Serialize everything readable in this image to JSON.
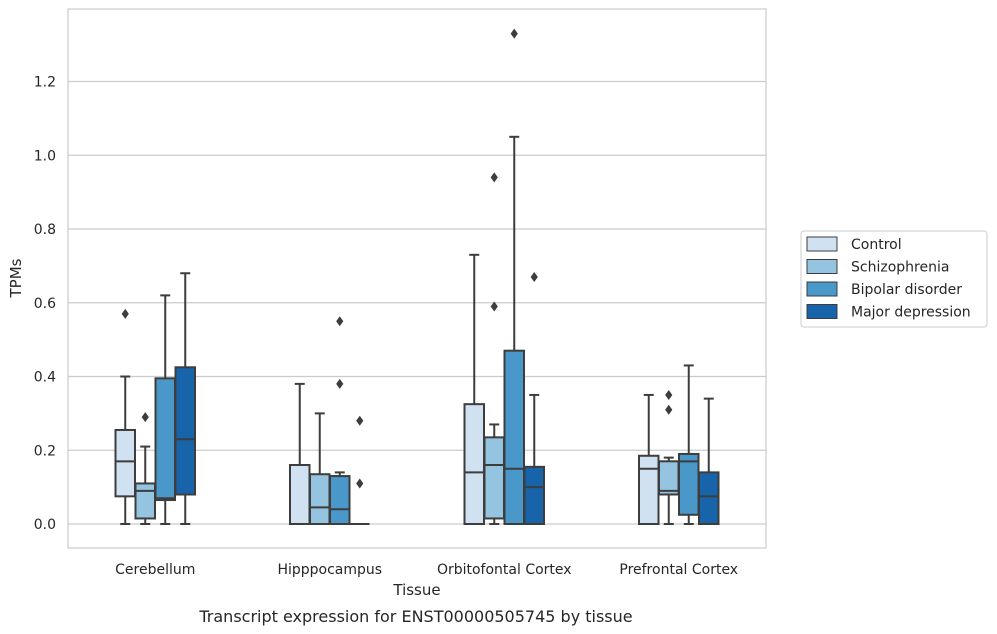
{
  "chart_data": {
    "type": "box",
    "caption": "Transcript expression for ENST00000505745 by tissue",
    "xlabel": "Tissue",
    "ylabel": "TPMs",
    "ylim": [
      -0.065,
      1.4
    ],
    "yticks": [
      0.0,
      0.2,
      0.4,
      0.6,
      0.8,
      1.0,
      1.2
    ],
    "ytick_labels": [
      "0.0",
      "0.2",
      "0.4",
      "0.6",
      "0.8",
      "1.0",
      "1.2"
    ],
    "grid": "horizontal",
    "legend_placement": "right",
    "categories": [
      "Cerebellum",
      "Hipppocampus",
      "Orbitofontal Cortex",
      "Prefrontal Cortex"
    ],
    "series": [
      {
        "name": "Control",
        "color": "#d0e1f2",
        "boxes": [
          {
            "whislo": 0.0,
            "q1": 0.075,
            "med": 0.17,
            "q3": 0.255,
            "whishi": 0.4,
            "fliers": [
              0.57
            ]
          },
          {
            "whislo": 0.0,
            "q1": 0.0,
            "med": 0.0,
            "q3": 0.16,
            "whishi": 0.38,
            "fliers": []
          },
          {
            "whislo": 0.0,
            "q1": 0.0,
            "med": 0.14,
            "q3": 0.325,
            "whishi": 0.73,
            "fliers": []
          },
          {
            "whislo": 0.0,
            "q1": 0.0,
            "med": 0.15,
            "q3": 0.185,
            "whishi": 0.35,
            "fliers": []
          }
        ]
      },
      {
        "name": "Schizophrenia",
        "color": "#94c4df",
        "boxes": [
          {
            "whislo": 0.0,
            "q1": 0.015,
            "med": 0.09,
            "q3": 0.11,
            "whishi": 0.21,
            "fliers": [
              0.29
            ]
          },
          {
            "whislo": 0.0,
            "q1": 0.0,
            "med": 0.045,
            "q3": 0.135,
            "whishi": 0.3,
            "fliers": []
          },
          {
            "whislo": 0.0,
            "q1": 0.015,
            "med": 0.16,
            "q3": 0.235,
            "whishi": 0.27,
            "fliers": [
              0.59,
              0.94
            ]
          },
          {
            "whislo": 0.0,
            "q1": 0.08,
            "med": 0.09,
            "q3": 0.17,
            "whishi": 0.18,
            "fliers": [
              0.31,
              0.35
            ]
          }
        ]
      },
      {
        "name": "Bipolar disorder",
        "color": "#4a98c9",
        "boxes": [
          {
            "whislo": 0.0,
            "q1": 0.065,
            "med": 0.07,
            "q3": 0.395,
            "whishi": 0.62,
            "fliers": []
          },
          {
            "whislo": 0.0,
            "q1": 0.0,
            "med": 0.04,
            "q3": 0.13,
            "whishi": 0.14,
            "fliers": [
              0.38,
              0.55
            ]
          },
          {
            "whislo": 0.0,
            "q1": 0.0,
            "med": 0.15,
            "q3": 0.47,
            "whishi": 1.05,
            "fliers": [
              1.33
            ]
          },
          {
            "whislo": 0.0,
            "q1": 0.025,
            "med": 0.17,
            "q3": 0.19,
            "whishi": 0.43,
            "fliers": []
          }
        ]
      },
      {
        "name": "Major depression",
        "color": "#1764ab",
        "boxes": [
          {
            "whislo": 0.0,
            "q1": 0.08,
            "med": 0.23,
            "q3": 0.425,
            "whishi": 0.68,
            "fliers": []
          },
          {
            "whislo": 0.0,
            "q1": 0.0,
            "med": 0.0,
            "q3": 0.0,
            "whishi": 0.0,
            "fliers": [
              0.11,
              0.28
            ]
          },
          {
            "whislo": 0.0,
            "q1": 0.0,
            "med": 0.1,
            "q3": 0.155,
            "whishi": 0.35,
            "fliers": [
              0.67
            ]
          },
          {
            "whislo": 0.0,
            "q1": 0.0,
            "med": 0.075,
            "q3": 0.14,
            "whishi": 0.34,
            "fliers": []
          }
        ]
      }
    ]
  }
}
